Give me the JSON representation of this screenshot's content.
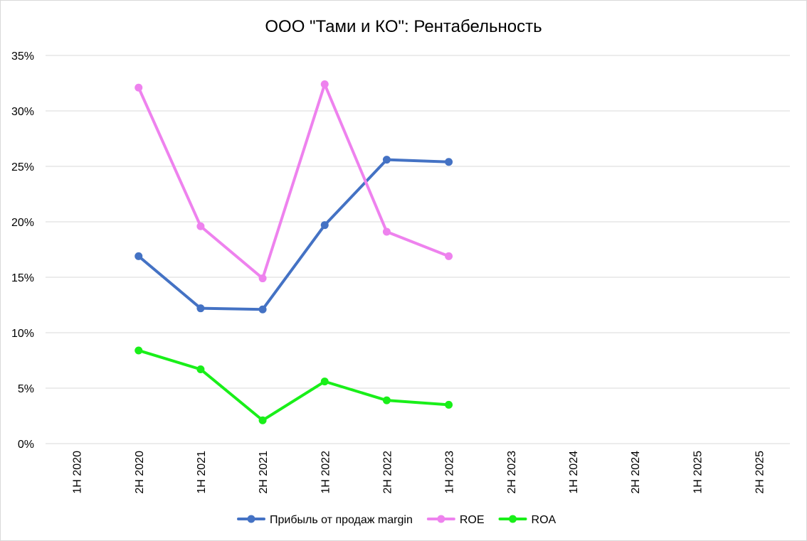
{
  "chart_data": {
    "type": "line",
    "title": "ООО \"Тами и КО\": Рентабельность",
    "categories": [
      "1H 2020",
      "2H 2020",
      "1H 2021",
      "2H 2021",
      "1H 2022",
      "2H 2022",
      "1H 2023",
      "2H 2023",
      "1H 2024",
      "2H 2024",
      "1H 2025",
      "2H 2025"
    ],
    "ylim": [
      0,
      35
    ],
    "yticks": [
      0,
      5,
      10,
      15,
      20,
      25,
      30,
      35
    ],
    "ytick_labels": [
      "0%",
      "5%",
      "10%",
      "15%",
      "20%",
      "25%",
      "30%",
      "35%"
    ],
    "grid": true,
    "legend_position": "bottom",
    "series": [
      {
        "name": "Прибыль от продаж margin",
        "color": "#4472c4",
        "values": [
          null,
          16.9,
          12.2,
          12.1,
          19.7,
          25.6,
          25.4,
          null,
          null,
          null,
          null,
          null
        ]
      },
      {
        "name": "ROE",
        "color": "#ee82ee",
        "values": [
          null,
          32.1,
          19.6,
          14.9,
          32.4,
          19.1,
          16.9,
          null,
          null,
          null,
          null,
          null
        ]
      },
      {
        "name": "ROA",
        "color": "#19ef19",
        "values": [
          null,
          8.4,
          6.7,
          2.1,
          5.6,
          3.9,
          3.5,
          null,
          null,
          null,
          null,
          null
        ]
      }
    ]
  }
}
